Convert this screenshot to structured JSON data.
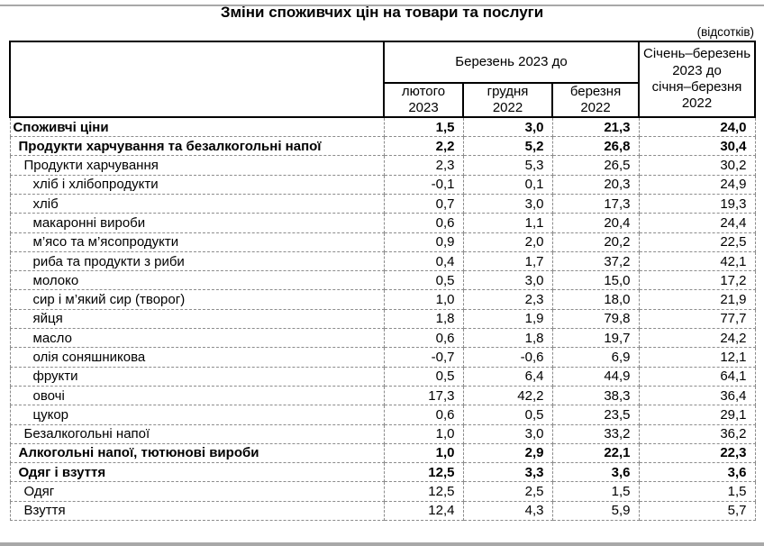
{
  "page": {
    "title": "Зміни споживчих цін на товари та послуги",
    "unit_note": "(відсотків)"
  },
  "table": {
    "header": {
      "group_col": "Березень 2023 до",
      "sub_cols": [
        "лютого\n2023",
        "грудня\n2022",
        "березня\n2022"
      ],
      "period_col": "Січень–березень\n2023 до\nсічня–березня\n2022"
    },
    "rows": [
      {
        "label": "Споживчі ціни",
        "indent": 0,
        "bold": true,
        "values": [
          "1,5",
          "3,0",
          "21,3",
          "24,0"
        ]
      },
      {
        "label": "Продукти харчування та безалкогольні напої",
        "indent": 1,
        "bold": true,
        "values": [
          "2,2",
          "5,2",
          "26,8",
          "30,4"
        ]
      },
      {
        "label": "Продукти харчування",
        "indent": 2,
        "bold": false,
        "values": [
          "2,3",
          "5,3",
          "26,5",
          "30,2"
        ]
      },
      {
        "label": "хліб і хлібопродукти",
        "indent": 3,
        "bold": false,
        "values": [
          "-0,1",
          "0,1",
          "20,3",
          "24,9"
        ]
      },
      {
        "label": "хліб",
        "indent": 3,
        "bold": false,
        "values": [
          "0,7",
          "3,0",
          "17,3",
          "19,3"
        ]
      },
      {
        "label": "макаронні вироби",
        "indent": 3,
        "bold": false,
        "values": [
          "0,6",
          "1,1",
          "20,4",
          "24,4"
        ]
      },
      {
        "label": "м’ясо та м’ясопродукти",
        "indent": 3,
        "bold": false,
        "values": [
          "0,9",
          "2,0",
          "20,2",
          "22,5"
        ]
      },
      {
        "label": "риба та продукти з риби",
        "indent": 3,
        "bold": false,
        "values": [
          "0,4",
          "1,7",
          "37,2",
          "42,1"
        ]
      },
      {
        "label": "молоко",
        "indent": 3,
        "bold": false,
        "values": [
          "0,5",
          "3,0",
          "15,0",
          "17,2"
        ]
      },
      {
        "label": "сир і м’який сир (творог)",
        "indent": 3,
        "bold": false,
        "values": [
          "1,0",
          "2,3",
          "18,0",
          "21,9"
        ]
      },
      {
        "label": "яйця",
        "indent": 3,
        "bold": false,
        "values": [
          "1,8",
          "1,9",
          "79,8",
          "77,7"
        ]
      },
      {
        "label": "масло",
        "indent": 3,
        "bold": false,
        "values": [
          "0,6",
          "1,8",
          "19,7",
          "24,2"
        ]
      },
      {
        "label": "олія соняшникова",
        "indent": 3,
        "bold": false,
        "values": [
          "-0,7",
          "-0,6",
          "6,9",
          "12,1"
        ]
      },
      {
        "label": "фрукти",
        "indent": 3,
        "bold": false,
        "values": [
          "0,5",
          "6,4",
          "44,9",
          "64,1"
        ]
      },
      {
        "label": "овочі",
        "indent": 3,
        "bold": false,
        "values": [
          "17,3",
          "42,2",
          "38,3",
          "36,4"
        ]
      },
      {
        "label": "цукор",
        "indent": 3,
        "bold": false,
        "values": [
          "0,6",
          "0,5",
          "23,5",
          "29,1"
        ]
      },
      {
        "label": "Безалкогольні напої",
        "indent": 2,
        "bold": false,
        "values": [
          "1,0",
          "3,0",
          "33,2",
          "36,2"
        ]
      },
      {
        "label": "Алкогольні напої, тютюнові вироби",
        "indent": 1,
        "bold": true,
        "values": [
          "1,0",
          "2,9",
          "22,1",
          "22,3"
        ]
      },
      {
        "label": "Одяг і взуття",
        "indent": 1,
        "bold": true,
        "values": [
          "12,5",
          "3,3",
          "3,6",
          "3,6"
        ]
      },
      {
        "label": "Одяг",
        "indent": 2,
        "bold": false,
        "values": [
          "12,5",
          "2,5",
          "1,5",
          "1,5"
        ]
      },
      {
        "label": "Взуття",
        "indent": 2,
        "bold": false,
        "values": [
          "12,4",
          "4,3",
          "5,9",
          "5,7"
        ]
      }
    ]
  }
}
